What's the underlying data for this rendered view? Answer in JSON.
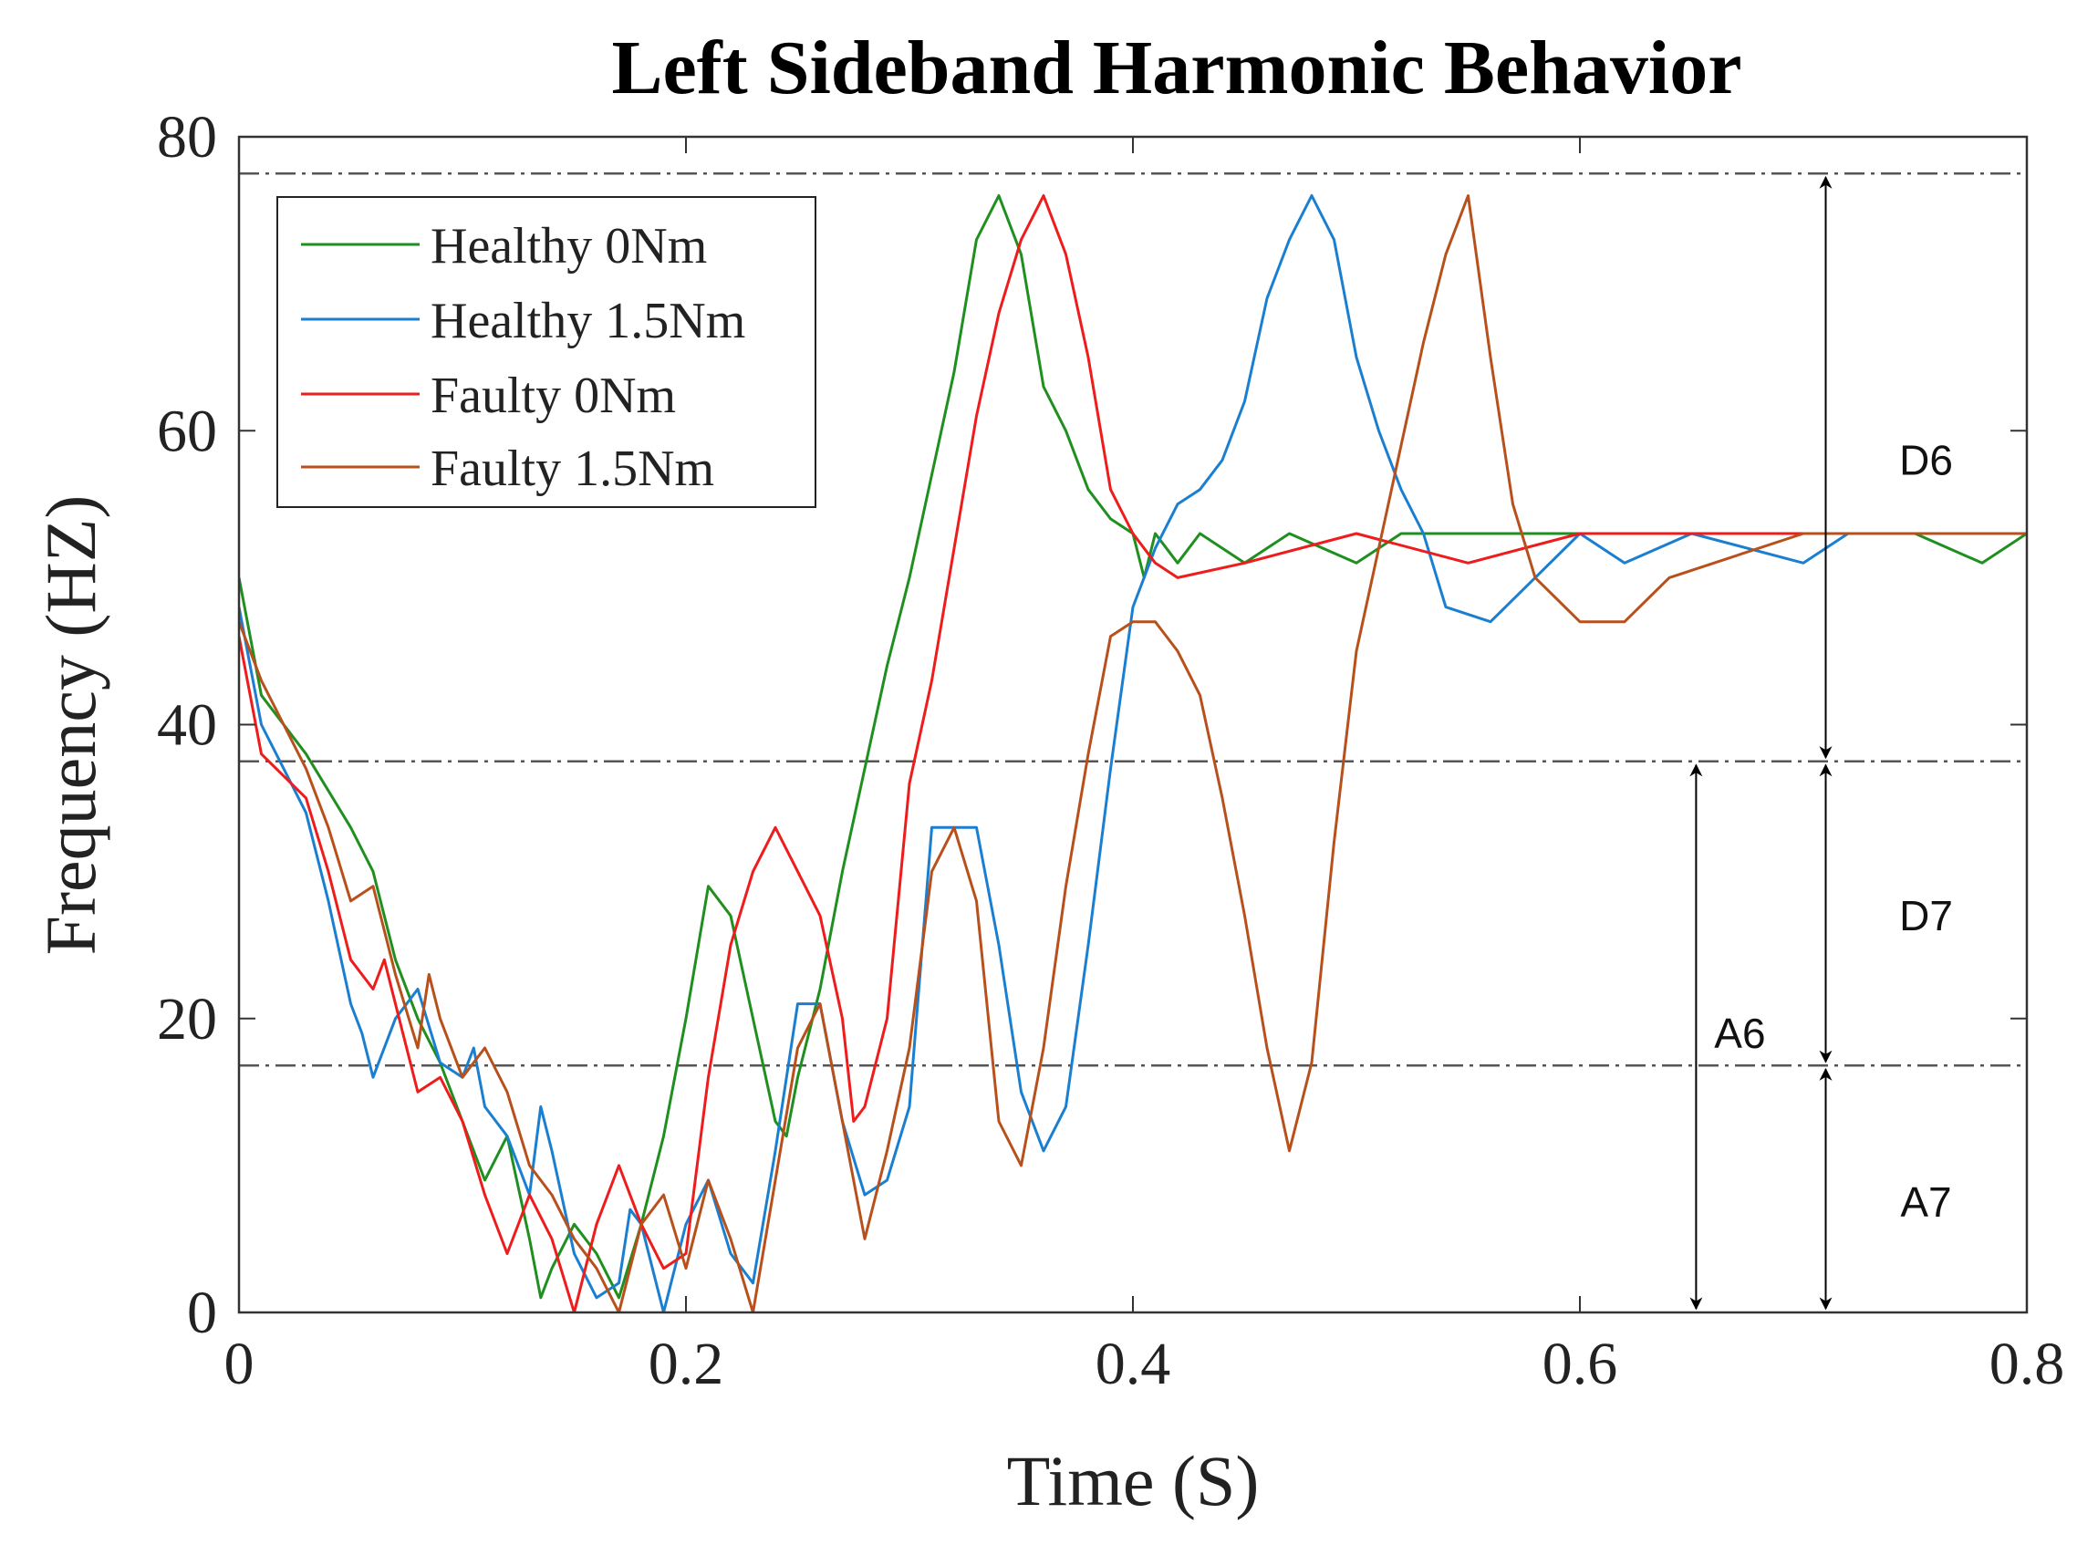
{
  "chart_data": {
    "type": "line",
    "title": "Left Sideband Harmonic Behavior",
    "xlabel": "Time (S)",
    "ylabel": "Frequency (HZ)",
    "xlim": [
      0,
      0.8
    ],
    "ylim": [
      0,
      80
    ],
    "xticks": [
      0,
      0.2,
      0.4,
      0.6,
      0.8
    ],
    "xtick_labels": [
      "0",
      "0.2",
      "0.4",
      "0.6",
      "0.8"
    ],
    "yticks": [
      0,
      20,
      40,
      60,
      80
    ],
    "ytick_labels": [
      "0",
      "20",
      "40",
      "60",
      "80"
    ],
    "grid": false,
    "legend_position": "top-left",
    "series": [
      {
        "name": "Healthy 0Nm",
        "color": "#1f8f1f",
        "points": [
          [
            0,
            50
          ],
          [
            0.01,
            42
          ],
          [
            0.03,
            38
          ],
          [
            0.05,
            33
          ],
          [
            0.06,
            30
          ],
          [
            0.07,
            24
          ],
          [
            0.08,
            20
          ],
          [
            0.09,
            17
          ],
          [
            0.1,
            13
          ],
          [
            0.11,
            9
          ],
          [
            0.12,
            12
          ],
          [
            0.13,
            5
          ],
          [
            0.135,
            1
          ],
          [
            0.14,
            3
          ],
          [
            0.15,
            6
          ],
          [
            0.16,
            4
          ],
          [
            0.17,
            1
          ],
          [
            0.18,
            6
          ],
          [
            0.19,
            12
          ],
          [
            0.2,
            20
          ],
          [
            0.21,
            29
          ],
          [
            0.22,
            27
          ],
          [
            0.23,
            20
          ],
          [
            0.24,
            13
          ],
          [
            0.245,
            12
          ],
          [
            0.25,
            16
          ],
          [
            0.26,
            22
          ],
          [
            0.27,
            30
          ],
          [
            0.28,
            37
          ],
          [
            0.29,
            44
          ],
          [
            0.3,
            50
          ],
          [
            0.31,
            57
          ],
          [
            0.32,
            64
          ],
          [
            0.33,
            73
          ],
          [
            0.34,
            76
          ],
          [
            0.35,
            72
          ],
          [
            0.36,
            63
          ],
          [
            0.37,
            60
          ],
          [
            0.38,
            56
          ],
          [
            0.39,
            54
          ],
          [
            0.4,
            53
          ],
          [
            0.405,
            50
          ],
          [
            0.41,
            53
          ],
          [
            0.42,
            51
          ],
          [
            0.43,
            53
          ],
          [
            0.45,
            51
          ],
          [
            0.47,
            53
          ],
          [
            0.5,
            51
          ],
          [
            0.52,
            53
          ],
          [
            0.55,
            53
          ],
          [
            0.6,
            53
          ],
          [
            0.65,
            53
          ],
          [
            0.7,
            53
          ],
          [
            0.75,
            53
          ],
          [
            0.78,
            51
          ],
          [
            0.8,
            53
          ]
        ]
      },
      {
        "name": "Healthy 1.5Nm",
        "color": "#1a7fd0",
        "points": [
          [
            0,
            48
          ],
          [
            0.01,
            40
          ],
          [
            0.02,
            37
          ],
          [
            0.03,
            34
          ],
          [
            0.04,
            28
          ],
          [
            0.05,
            21
          ],
          [
            0.055,
            19
          ],
          [
            0.06,
            16
          ],
          [
            0.07,
            20
          ],
          [
            0.08,
            22
          ],
          [
            0.09,
            17
          ],
          [
            0.1,
            16
          ],
          [
            0.105,
            18
          ],
          [
            0.11,
            14
          ],
          [
            0.12,
            12
          ],
          [
            0.13,
            8
          ],
          [
            0.135,
            14
          ],
          [
            0.14,
            11
          ],
          [
            0.15,
            4
          ],
          [
            0.16,
            1
          ],
          [
            0.17,
            2
          ],
          [
            0.175,
            7
          ],
          [
            0.18,
            6
          ],
          [
            0.19,
            0
          ],
          [
            0.2,
            6
          ],
          [
            0.21,
            9
          ],
          [
            0.22,
            4
          ],
          [
            0.23,
            2
          ],
          [
            0.24,
            11
          ],
          [
            0.25,
            21
          ],
          [
            0.26,
            21
          ],
          [
            0.27,
            13
          ],
          [
            0.28,
            8
          ],
          [
            0.29,
            9
          ],
          [
            0.3,
            14
          ],
          [
            0.31,
            33
          ],
          [
            0.33,
            33
          ],
          [
            0.34,
            25
          ],
          [
            0.35,
            15
          ],
          [
            0.36,
            11
          ],
          [
            0.37,
            14
          ],
          [
            0.38,
            25
          ],
          [
            0.39,
            37
          ],
          [
            0.4,
            48
          ],
          [
            0.41,
            52
          ],
          [
            0.42,
            55
          ],
          [
            0.43,
            56
          ],
          [
            0.44,
            58
          ],
          [
            0.45,
            62
          ],
          [
            0.46,
            69
          ],
          [
            0.47,
            73
          ],
          [
            0.48,
            76
          ],
          [
            0.49,
            73
          ],
          [
            0.5,
            65
          ],
          [
            0.51,
            60
          ],
          [
            0.52,
            56
          ],
          [
            0.53,
            53
          ],
          [
            0.54,
            48
          ],
          [
            0.56,
            47
          ],
          [
            0.58,
            50
          ],
          [
            0.6,
            53
          ],
          [
            0.62,
            51
          ],
          [
            0.65,
            53
          ],
          [
            0.7,
            51
          ],
          [
            0.72,
            53
          ],
          [
            0.75,
            53
          ],
          [
            0.8,
            53
          ]
        ]
      },
      {
        "name": "Faulty 0Nm",
        "color": "#ee1c1c",
        "points": [
          [
            0,
            46
          ],
          [
            0.01,
            38
          ],
          [
            0.03,
            35
          ],
          [
            0.04,
            30
          ],
          [
            0.05,
            24
          ],
          [
            0.06,
            22
          ],
          [
            0.065,
            24
          ],
          [
            0.07,
            21
          ],
          [
            0.08,
            15
          ],
          [
            0.09,
            16
          ],
          [
            0.1,
            13
          ],
          [
            0.11,
            8
          ],
          [
            0.12,
            4
          ],
          [
            0.13,
            8
          ],
          [
            0.14,
            5
          ],
          [
            0.15,
            0
          ],
          [
            0.16,
            6
          ],
          [
            0.17,
            10
          ],
          [
            0.18,
            6
          ],
          [
            0.19,
            3
          ],
          [
            0.2,
            4
          ],
          [
            0.21,
            16
          ],
          [
            0.22,
            25
          ],
          [
            0.23,
            30
          ],
          [
            0.24,
            33
          ],
          [
            0.25,
            30
          ],
          [
            0.26,
            27
          ],
          [
            0.27,
            20
          ],
          [
            0.275,
            13
          ],
          [
            0.28,
            14
          ],
          [
            0.29,
            20
          ],
          [
            0.3,
            36
          ],
          [
            0.31,
            43
          ],
          [
            0.32,
            52
          ],
          [
            0.33,
            61
          ],
          [
            0.34,
            68
          ],
          [
            0.35,
            73
          ],
          [
            0.36,
            76
          ],
          [
            0.37,
            72
          ],
          [
            0.38,
            65
          ],
          [
            0.39,
            56
          ],
          [
            0.4,
            53
          ],
          [
            0.41,
            51
          ],
          [
            0.42,
            50
          ],
          [
            0.45,
            51
          ],
          [
            0.5,
            53
          ],
          [
            0.55,
            51
          ],
          [
            0.6,
            53
          ],
          [
            0.65,
            53
          ],
          [
            0.7,
            53
          ],
          [
            0.75,
            53
          ],
          [
            0.8,
            53
          ]
        ]
      },
      {
        "name": "Faulty 1.5Nm",
        "color": "#b8501c",
        "points": [
          [
            0,
            47
          ],
          [
            0.01,
            43
          ],
          [
            0.02,
            40
          ],
          [
            0.03,
            37
          ],
          [
            0.04,
            33
          ],
          [
            0.05,
            28
          ],
          [
            0.06,
            29
          ],
          [
            0.07,
            23
          ],
          [
            0.08,
            18
          ],
          [
            0.085,
            23
          ],
          [
            0.09,
            20
          ],
          [
            0.1,
            16
          ],
          [
            0.11,
            18
          ],
          [
            0.12,
            15
          ],
          [
            0.13,
            10
          ],
          [
            0.14,
            8
          ],
          [
            0.15,
            5
          ],
          [
            0.16,
            3
          ],
          [
            0.17,
            0
          ],
          [
            0.18,
            6
          ],
          [
            0.19,
            8
          ],
          [
            0.2,
            3
          ],
          [
            0.21,
            9
          ],
          [
            0.22,
            5
          ],
          [
            0.23,
            0
          ],
          [
            0.24,
            9
          ],
          [
            0.25,
            18
          ],
          [
            0.26,
            21
          ],
          [
            0.27,
            13
          ],
          [
            0.28,
            5
          ],
          [
            0.29,
            11
          ],
          [
            0.3,
            18
          ],
          [
            0.31,
            30
          ],
          [
            0.32,
            33
          ],
          [
            0.33,
            28
          ],
          [
            0.34,
            13
          ],
          [
            0.35,
            10
          ],
          [
            0.36,
            18
          ],
          [
            0.37,
            29
          ],
          [
            0.38,
            38
          ],
          [
            0.39,
            46
          ],
          [
            0.4,
            47
          ],
          [
            0.41,
            47
          ],
          [
            0.42,
            45
          ],
          [
            0.43,
            42
          ],
          [
            0.44,
            35
          ],
          [
            0.45,
            27
          ],
          [
            0.46,
            18
          ],
          [
            0.47,
            11
          ],
          [
            0.48,
            17
          ],
          [
            0.49,
            32
          ],
          [
            0.5,
            45
          ],
          [
            0.51,
            52
          ],
          [
            0.52,
            59
          ],
          [
            0.53,
            66
          ],
          [
            0.54,
            72
          ],
          [
            0.55,
            76
          ],
          [
            0.56,
            65
          ],
          [
            0.57,
            55
          ],
          [
            0.58,
            50
          ],
          [
            0.6,
            47
          ],
          [
            0.62,
            47
          ],
          [
            0.64,
            50
          ],
          [
            0.66,
            51
          ],
          [
            0.7,
            53
          ],
          [
            0.75,
            53
          ],
          [
            0.8,
            53
          ]
        ]
      }
    ],
    "reference_lines": [
      {
        "y": 77.5,
        "style": "dash-dot"
      },
      {
        "y": 37.5,
        "style": "dash-dot"
      },
      {
        "y": 16.8,
        "style": "dash-dot"
      }
    ],
    "annotations": [
      {
        "label": "D6",
        "x": 0.71,
        "from": 37.5,
        "to": 77.5,
        "label_y": 58
      },
      {
        "label": "D7",
        "x": 0.71,
        "from": 16.8,
        "to": 37.5,
        "label_y": 27
      },
      {
        "label": "A7",
        "x": 0.71,
        "from": 0,
        "to": 16.8,
        "label_y": 7.5
      },
      {
        "label": "A6",
        "x": 0.652,
        "from": 0,
        "to": 37.5,
        "label_y": 19
      }
    ]
  }
}
